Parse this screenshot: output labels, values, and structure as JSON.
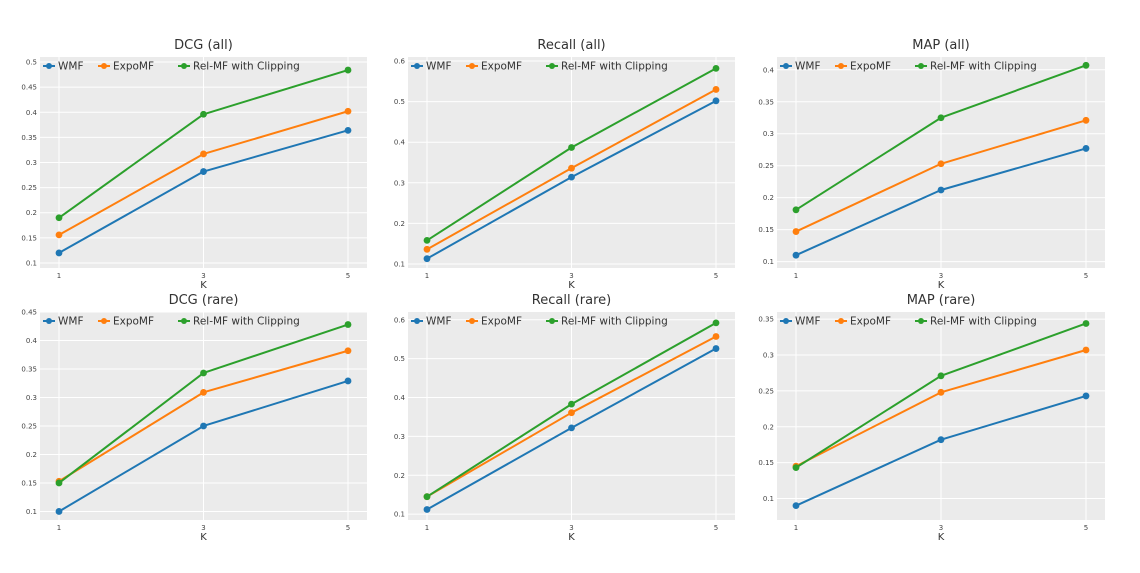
{
  "chart_data": [
    {
      "type": "line",
      "title": "DCG (all)",
      "xlabel": "K",
      "ylabel": "",
      "x": [
        1,
        3,
        5
      ],
      "x_tick_labels": [
        "1",
        "3",
        "5"
      ],
      "ylim": [
        0.09,
        0.51
      ],
      "y_ticks": [
        0.1,
        0.15,
        0.2,
        0.25,
        0.3,
        0.35,
        0.4,
        0.45,
        0.5
      ],
      "y_tick_labels": [
        "0.1",
        "0.15",
        "0.2",
        "0.25",
        "0.3",
        "0.35",
        "0.4",
        "0.45",
        "0.5"
      ],
      "grid": true,
      "legend_position": "top-left",
      "series": [
        {
          "name": "WMF",
          "color": "#1f77b4",
          "values": [
            0.12,
            0.282,
            0.364
          ]
        },
        {
          "name": "ExpoMF",
          "color": "#ff7f0e",
          "values": [
            0.156,
            0.317,
            0.402
          ]
        },
        {
          "name": "Rel-MF with Clipping",
          "color": "#2ca02c",
          "values": [
            0.19,
            0.396,
            0.484
          ]
        }
      ]
    },
    {
      "type": "line",
      "title": "Recall (all)",
      "xlabel": "K",
      "ylabel": "",
      "x": [
        1,
        3,
        5
      ],
      "x_tick_labels": [
        "1",
        "3",
        "5"
      ],
      "ylim": [
        0.09,
        0.61
      ],
      "y_ticks": [
        0.1,
        0.2,
        0.3,
        0.4,
        0.5,
        0.6
      ],
      "y_tick_labels": [
        "0.1",
        "0.2",
        "0.3",
        "0.4",
        "0.5",
        "0.6"
      ],
      "grid": true,
      "legend_position": "top-left",
      "series": [
        {
          "name": "WMF",
          "color": "#1f77b4",
          "values": [
            0.113,
            0.314,
            0.502
          ]
        },
        {
          "name": "ExpoMF",
          "color": "#ff7f0e",
          "values": [
            0.136,
            0.336,
            0.53
          ]
        },
        {
          "name": "Rel-MF with Clipping",
          "color": "#2ca02c",
          "values": [
            0.158,
            0.387,
            0.582
          ]
        }
      ]
    },
    {
      "type": "line",
      "title": "MAP (all)",
      "xlabel": "K",
      "ylabel": "",
      "x": [
        1,
        3,
        5
      ],
      "x_tick_labels": [
        "1",
        "3",
        "5"
      ],
      "ylim": [
        0.09,
        0.42
      ],
      "y_ticks": [
        0.1,
        0.15,
        0.2,
        0.25,
        0.3,
        0.35,
        0.4
      ],
      "y_tick_labels": [
        "0.1",
        "0.15",
        "0.2",
        "0.25",
        "0.3",
        "0.35",
        "0.4"
      ],
      "grid": true,
      "legend_position": "top-left",
      "series": [
        {
          "name": "WMF",
          "color": "#1f77b4",
          "values": [
            0.11,
            0.212,
            0.277
          ]
        },
        {
          "name": "ExpoMF",
          "color": "#ff7f0e",
          "values": [
            0.147,
            0.253,
            0.321
          ]
        },
        {
          "name": "Rel-MF with Clipping",
          "color": "#2ca02c",
          "values": [
            0.181,
            0.325,
            0.407
          ]
        }
      ]
    },
    {
      "type": "line",
      "title": "DCG (rare)",
      "xlabel": "K",
      "ylabel": "",
      "x": [
        1,
        3,
        5
      ],
      "x_tick_labels": [
        "1",
        "3",
        "5"
      ],
      "ylim": [
        0.085,
        0.45
      ],
      "y_ticks": [
        0.1,
        0.15,
        0.2,
        0.25,
        0.3,
        0.35,
        0.4,
        0.45
      ],
      "y_tick_labels": [
        "0.1",
        "0.15",
        "0.2",
        "0.25",
        "0.3",
        "0.35",
        "0.4",
        "0.45"
      ],
      "grid": true,
      "legend_position": "top-left",
      "series": [
        {
          "name": "WMF",
          "color": "#1f77b4",
          "values": [
            0.1,
            0.25,
            0.329
          ]
        },
        {
          "name": "ExpoMF",
          "color": "#ff7f0e",
          "values": [
            0.153,
            0.309,
            0.382
          ]
        },
        {
          "name": "Rel-MF with Clipping",
          "color": "#2ca02c",
          "values": [
            0.15,
            0.343,
            0.428
          ]
        }
      ]
    },
    {
      "type": "line",
      "title": "Recall (rare)",
      "xlabel": "K",
      "ylabel": "",
      "x": [
        1,
        3,
        5
      ],
      "x_tick_labels": [
        "1",
        "3",
        "5"
      ],
      "ylim": [
        0.085,
        0.62
      ],
      "y_ticks": [
        0.1,
        0.2,
        0.3,
        0.4,
        0.5,
        0.6
      ],
      "y_tick_labels": [
        "0.1",
        "0.2",
        "0.3",
        "0.4",
        "0.5",
        "0.6"
      ],
      "grid": true,
      "legend_position": "top-left",
      "series": [
        {
          "name": "WMF",
          "color": "#1f77b4",
          "values": [
            0.112,
            0.322,
            0.526
          ]
        },
        {
          "name": "ExpoMF",
          "color": "#ff7f0e",
          "values": [
            0.145,
            0.361,
            0.557
          ]
        },
        {
          "name": "Rel-MF with Clipping",
          "color": "#2ca02c",
          "values": [
            0.145,
            0.383,
            0.592
          ]
        }
      ]
    },
    {
      "type": "line",
      "title": "MAP (rare)",
      "xlabel": "K",
      "ylabel": "",
      "x": [
        1,
        3,
        5
      ],
      "x_tick_labels": [
        "1",
        "3",
        "5"
      ],
      "ylim": [
        0.07,
        0.36
      ],
      "y_ticks": [
        0.1,
        0.15,
        0.2,
        0.25,
        0.3,
        0.35
      ],
      "y_tick_labels": [
        "0.1",
        "0.15",
        "0.2",
        "0.25",
        "0.3",
        "0.35"
      ],
      "grid": true,
      "legend_position": "top-left",
      "series": [
        {
          "name": "WMF",
          "color": "#1f77b4",
          "values": [
            0.09,
            0.182,
            0.243
          ]
        },
        {
          "name": "ExpoMF",
          "color": "#ff7f0e",
          "values": [
            0.145,
            0.248,
            0.307
          ]
        },
        {
          "name": "Rel-MF with Clipping",
          "color": "#2ca02c",
          "values": [
            0.143,
            0.271,
            0.344
          ]
        }
      ]
    }
  ]
}
